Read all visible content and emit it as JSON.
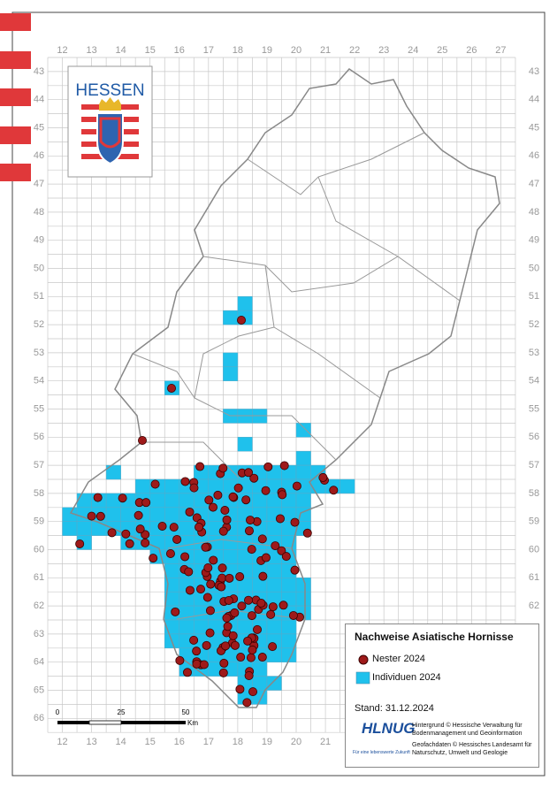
{
  "map": {
    "logo": "HESSEN",
    "columns": [
      12,
      13,
      14,
      15,
      16,
      17,
      18,
      19,
      20,
      21,
      22,
      23,
      24,
      25,
      26,
      27
    ],
    "rows": [
      43,
      44,
      45,
      46,
      47,
      48,
      49,
      50,
      51,
      52,
      53,
      54,
      55,
      56,
      57,
      58,
      59,
      60,
      61,
      62,
      63,
      64,
      65,
      66
    ],
    "scale": {
      "ticks": [
        "0",
        "25",
        "50"
      ],
      "unit": "Km"
    },
    "legend": {
      "title": "Nachweise Asiatische Hornisse",
      "items": [
        "Nester 2024",
        "Individuen 2024"
      ]
    },
    "date": "Stand: 31.12.2024",
    "agency": {
      "name": "HLNUG",
      "tagline": "Für eine lebenswerte Zukunft"
    },
    "credits": [
      "Hintergrund © Hessische Verwaltung für Bodenmanagement und Geoinformation",
      "Geofachdaten © Hessisches Landesamt für Naturschutz, Umwelt und Geologie"
    ]
  }
}
